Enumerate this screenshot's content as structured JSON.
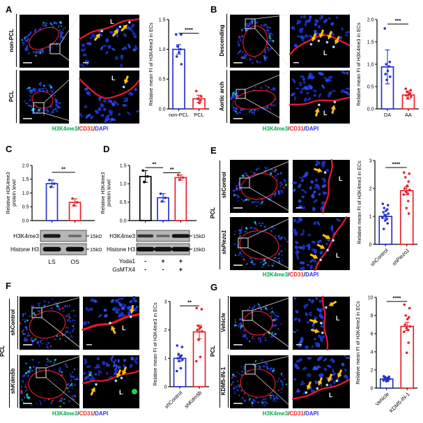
{
  "figure": {
    "lumen_label": "L",
    "caption_parts": [
      {
        "text": "H3K4me3",
        "color": "#00a94f"
      },
      {
        "text": "/",
        "color": "#222222"
      },
      {
        "text": "CD31",
        "color": "#ff1e1e"
      },
      {
        "text": "/",
        "color": "#222222"
      },
      {
        "text": "DAPI",
        "color": "#2f2fff"
      }
    ]
  },
  "panels": {
    "A": {
      "label": "A",
      "rows": [
        {
          "label": "non-PCL"
        },
        {
          "label": "PCL"
        }
      ]
    },
    "B": {
      "label": "B",
      "rows": [
        {
          "label": "Descending"
        },
        {
          "label": "Aortic arch"
        }
      ]
    },
    "C": {
      "label": "C",
      "blot": {
        "rows": [
          {
            "label": "H3K4me3",
            "kd": "15kD",
            "bands": [
              0.9,
              0.3
            ]
          },
          {
            "label": "Histone H3",
            "kd": "15kD",
            "bands": [
              1,
              1
            ]
          }
        ],
        "lanes": [
          "LS",
          "OS"
        ]
      }
    },
    "D": {
      "label": "D",
      "blot": {
        "rows": [
          {
            "label": "H3K4me3",
            "kd": "15kD",
            "bands": [
              0.7,
              0.35,
              0.95
            ]
          },
          {
            "label": "Histone H3",
            "kd": "15kD",
            "bands": [
              1,
              0.95,
              1
            ]
          }
        ],
        "treatments": [
          {
            "label": "Yoda1",
            "values": [
              "-",
              "+",
              "+"
            ]
          },
          {
            "label": "GsMTX4",
            "values": [
              "-",
              "-",
              "+"
            ]
          }
        ]
      }
    },
    "E": {
      "label": "E",
      "group_label": "PCL",
      "rows": [
        {
          "parts": [
            {
              "t": "shControl"
            }
          ]
        },
        {
          "parts": [
            {
              "t": "sh"
            },
            {
              "t": "Piezo1",
              "i": true
            }
          ]
        }
      ]
    },
    "F": {
      "label": "F",
      "group_label": "PCL",
      "rows": [
        {
          "parts": [
            {
              "t": "shControl"
            }
          ]
        },
        {
          "parts": [
            {
              "t": "sh"
            },
            {
              "t": "Kdm5b",
              "i": true
            }
          ]
        }
      ]
    },
    "G": {
      "label": "G",
      "group_label": "PCL",
      "rows": [
        {
          "parts": [
            {
              "t": "Vehicle"
            }
          ]
        },
        {
          "parts": [
            {
              "t": "KDM5-IN-1"
            }
          ]
        }
      ]
    }
  },
  "chart_data": {
    "A": {
      "type": "bar",
      "ylabel": [
        "Relative mean FI of H3K4me3 in ECs"
      ],
      "ylim": [
        0,
        1.5
      ],
      "yticks": [
        {
          "v": 0,
          "t": "0.0"
        },
        {
          "v": 0.5,
          "t": "0.5"
        },
        {
          "v": 1.0,
          "t": "1.0"
        },
        {
          "v": 1.5,
          "t": "1.5"
        }
      ],
      "xrotate": 0,
      "bars": [
        {
          "label": [
            {
              "t": "non-PCL"
            }
          ],
          "value": 1.0,
          "err": 0.08,
          "color": "#2733cc",
          "dots": [
            1.25,
            1.25,
            1.05,
            1.0,
            0.95,
            0.88,
            0.75
          ]
        },
        {
          "label": [
            {
              "t": "PCL"
            }
          ],
          "value": 0.17,
          "err": 0.06,
          "color": "#e8212b",
          "dots": [
            0.3,
            0.21,
            0.17,
            0.14,
            0.1
          ]
        }
      ],
      "sig": [
        {
          "a": 0,
          "b": 1,
          "y": 1.27,
          "stars": "****"
        }
      ]
    },
    "B": {
      "type": "bar",
      "ylabel": [
        "Relative mean FI of H3K4me3 in ECs"
      ],
      "ylim": [
        0,
        2.0
      ],
      "yticks": [
        {
          "v": 0,
          "t": "0.0"
        },
        {
          "v": 0.5,
          "t": "0.5"
        },
        {
          "v": 1.0,
          "t": "1.0"
        },
        {
          "v": 1.5,
          "t": "1.5"
        },
        {
          "v": 2.0,
          "t": "2.0"
        }
      ],
      "xrotate": 0,
      "bars": [
        {
          "label": [
            {
              "t": "DA"
            }
          ],
          "value": 0.94,
          "err": 0.38,
          "color": "#2733cc",
          "dots": [
            1.8,
            1.05,
            1.0,
            0.95,
            0.85,
            0.78,
            0.72,
            0.65
          ]
        },
        {
          "label": [
            {
              "t": "AA"
            }
          ],
          "value": 0.31,
          "err": 0.09,
          "color": "#e8212b",
          "dots": [
            0.45,
            0.42,
            0.38,
            0.35,
            0.32,
            0.3,
            0.27,
            0.24
          ]
        }
      ],
      "sig": [
        {
          "a": 0,
          "b": 1,
          "y": 1.9,
          "stars": "***"
        }
      ]
    },
    "C": {
      "type": "bar",
      "ylabel": [
        "Relative H3K4me3",
        "protein level"
      ],
      "ylim": [
        0,
        2.0
      ],
      "yticks": [
        {
          "v": 0,
          "t": "0.0"
        },
        {
          "v": 0.5,
          "t": "0.5"
        },
        {
          "v": 1.0,
          "t": "1.0"
        },
        {
          "v": 1.5,
          "t": "1.5"
        },
        {
          "v": 2.0,
          "t": "2.0"
        }
      ],
      "xrotate": 0,
      "bars": [
        {
          "value": 1.34,
          "err": 0.13,
          "color": "#2733cc",
          "dots": [
            1.47,
            1.34,
            1.22
          ]
        },
        {
          "value": 0.66,
          "err": 0.13,
          "color": "#e8212b",
          "dots": [
            0.8,
            0.66,
            0.55
          ]
        }
      ],
      "sig": [
        {
          "a": 0,
          "b": 1,
          "y": 1.75,
          "stars": "**"
        }
      ]
    },
    "D": {
      "type": "bar",
      "ylabel": [
        "Relative H3K4me3",
        "protein level"
      ],
      "ylim": [
        0,
        1.5
      ],
      "yticks": [
        {
          "v": 0,
          "t": "0.0"
        },
        {
          "v": 0.5,
          "t": "0.5"
        },
        {
          "v": 1.0,
          "t": "1.0"
        },
        {
          "v": 1.5,
          "t": "1.5"
        }
      ],
      "xrotate": 0,
      "bars": [
        {
          "value": 1.2,
          "err": 0.16,
          "color": "#000000",
          "dots": [
            1.36,
            1.2,
            1.05
          ]
        },
        {
          "value": 0.62,
          "err": 0.11,
          "color": "#2733cc",
          "dots": [
            0.73,
            0.62,
            0.52
          ]
        },
        {
          "value": 1.17,
          "err": 0.07,
          "color": "#e8212b",
          "dots": [
            1.24,
            1.17,
            1.11
          ]
        }
      ],
      "sig": [
        {
          "a": 0,
          "b": 1,
          "y": 1.44,
          "stars": "**"
        },
        {
          "a": 1,
          "b": 2,
          "y": 1.3,
          "stars": "**"
        }
      ]
    },
    "E": {
      "type": "bar",
      "ylabel": [
        "Relative mean FI of H3K4me3 in ECs"
      ],
      "ylim": [
        0,
        3
      ],
      "yticks": [
        {
          "v": 0,
          "t": "0"
        },
        {
          "v": 1,
          "t": "1"
        },
        {
          "v": 2,
          "t": "2"
        },
        {
          "v": 3,
          "t": "3"
        }
      ],
      "xrotate": 45,
      "bars": [
        {
          "label": [
            {
              "t": "shControl"
            }
          ],
          "value": 1.0,
          "err": 0.07,
          "color": "#2733cc",
          "dots": [
            1.45,
            1.4,
            1.3,
            1.25,
            1.2,
            1.15,
            1.1,
            1.05,
            1.0,
            0.95,
            0.9,
            0.85,
            0.75,
            0.55
          ]
        },
        {
          "label": [
            {
              "t": "sh"
            },
            {
              "t": "Piezo1",
              "i": true
            }
          ],
          "value": 1.92,
          "err": 0.14,
          "color": "#e8212b",
          "dots": [
            2.57,
            2.53,
            2.4,
            2.25,
            2.1,
            2.0,
            1.95,
            1.88,
            1.82,
            1.78,
            1.55,
            1.3,
            1.1
          ]
        }
      ],
      "sig": [
        {
          "a": 0,
          "b": 1,
          "y": 2.75,
          "stars": "****"
        }
      ]
    },
    "F": {
      "type": "bar",
      "ylabel": [
        "Relative mean FI of H3K4me3 in ECs"
      ],
      "ylim": [
        0,
        3
      ],
      "yticks": [
        {
          "v": 0,
          "t": "0"
        },
        {
          "v": 1,
          "t": "1"
        },
        {
          "v": 2,
          "t": "2"
        },
        {
          "v": 3,
          "t": "3"
        }
      ],
      "xrotate": 45,
      "bars": [
        {
          "label": [
            {
              "t": "shControl"
            }
          ],
          "value": 1.0,
          "err": 0.1,
          "color": "#2733cc",
          "dots": [
            1.45,
            1.4,
            1.15,
            1.1,
            1.05,
            1.0,
            0.95,
            0.9,
            0.65,
            0.55
          ]
        },
        {
          "label": [
            {
              "t": "sh"
            },
            {
              "t": "Kdm5b",
              "i": true
            }
          ],
          "value": 1.93,
          "err": 0.24,
          "color": "#e8212b",
          "dots": [
            2.77,
            2.73,
            2.15,
            2.1,
            2.05,
            2.0,
            1.95,
            1.65,
            1.05,
            0.9
          ]
        }
      ],
      "sig": [
        {
          "a": 0,
          "b": 1,
          "y": 2.85,
          "stars": "**"
        }
      ]
    },
    "G": {
      "type": "bar",
      "ylabel": [
        "Relative mean FI of H3K4me3 in ECs"
      ],
      "ylim": [
        0,
        10
      ],
      "yticks": [
        {
          "v": 0,
          "t": "0"
        },
        {
          "v": 2,
          "t": "2"
        },
        {
          "v": 4,
          "t": "4"
        },
        {
          "v": 6,
          "t": "6"
        },
        {
          "v": 8,
          "t": "8"
        },
        {
          "v": 10,
          "t": "10"
        }
      ],
      "xrotate": 45,
      "bars": [
        {
          "label": [
            {
              "t": "Vehicle"
            }
          ],
          "value": 1.0,
          "err": 0.08,
          "color": "#2733cc",
          "dots": [
            1.3,
            1.25,
            1.2,
            1.15,
            1.1,
            1.05,
            1.0,
            0.95,
            0.9,
            0.85,
            0.8,
            0.75
          ]
        },
        {
          "label": [
            {
              "t": "KDM5-IN-1"
            }
          ],
          "value": 6.8,
          "err": 0.45,
          "color": "#e8212b",
          "dots": [
            9.2,
            8.8,
            8.0,
            7.8,
            7.6,
            7.0,
            6.8,
            6.6,
            6.4,
            6.2,
            5.0,
            3.9
          ]
        }
      ],
      "sig": [
        {
          "a": 0,
          "b": 1,
          "y": 9.55,
          "stars": "****"
        }
      ]
    }
  }
}
